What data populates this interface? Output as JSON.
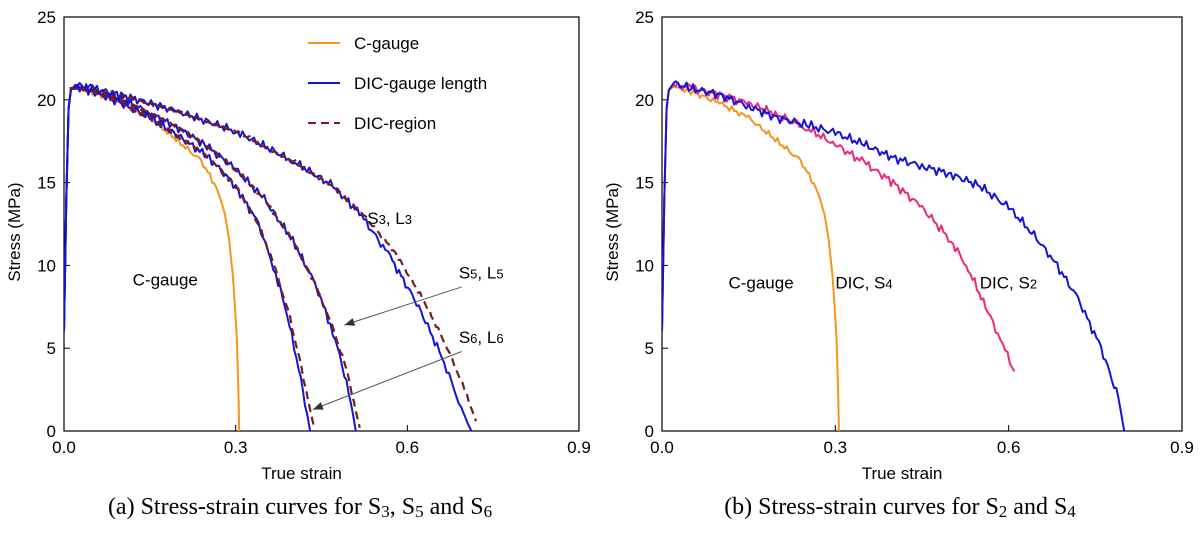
{
  "colors": {
    "c_gauge": "#f7941d",
    "dic_gauge": "#1414d8",
    "dic_region": "#7a1c1c",
    "dic_s4": "#ec2a7c",
    "axis": "#000000"
  },
  "chart_data": [
    {
      "id": "a",
      "type": "line",
      "caption": {
        "prefix": "(a) Stress-strain curves for S",
        "s1": "3",
        "mid1": ", S",
        "s2": "5",
        "mid2": " and S",
        "s3": "6"
      },
      "xlabel": "True strain",
      "ylabel": "Stress (MPa)",
      "xlim": [
        0,
        0.9
      ],
      "ylim": [
        0,
        25
      ],
      "xticks": [
        "0.0",
        "0.3",
        "0.6",
        "0.9"
      ],
      "yticks": [
        "0",
        "5",
        "10",
        "15",
        "20",
        "25"
      ],
      "legend": {
        "position": "top-right",
        "entries": [
          {
            "label": "C-gauge",
            "color": "#f7941d",
            "dash": false
          },
          {
            "label": "DIC-gauge length",
            "color": "#1414d8",
            "dash": false
          },
          {
            "label": "DIC-region",
            "color": "#7a1c1c",
            "dash": true
          }
        ]
      },
      "annotations": [
        {
          "base": "C-gauge",
          "sub": "",
          "tail": "",
          "sub2": "",
          "x": 0.12,
          "y": 8.8
        },
        {
          "base": "S",
          "sub": "3",
          "tail": ", L",
          "sub2": "3",
          "x": 0.53,
          "y": 12.5
        },
        {
          "base": "S",
          "sub": "5",
          "tail": ", L",
          "sub2": "5",
          "x": 0.69,
          "y": 9.2
        },
        {
          "base": "S",
          "sub": "6",
          "tail": ", L",
          "sub2": "6",
          "x": 0.69,
          "y": 5.3
        }
      ],
      "arrows": [
        {
          "from": [
            0.695,
            8.7
          ],
          "to": [
            0.49,
            6.4
          ]
        },
        {
          "from": [
            0.695,
            4.8
          ],
          "to": [
            0.435,
            1.3
          ]
        }
      ],
      "series": [
        {
          "name": "C-gauge",
          "color": "#f7941d",
          "dash": false,
          "wiggle": 0.2,
          "x": [
            0,
            0.004,
            0.008,
            0.012,
            0.02,
            0.05,
            0.1,
            0.15,
            0.2,
            0.24,
            0.27,
            0.285,
            0.295,
            0.302,
            0.305,
            0.306,
            0.306
          ],
          "y": [
            6,
            14,
            19.5,
            20.6,
            20.8,
            20.5,
            19.8,
            18.9,
            17.5,
            16.3,
            14.5,
            12.5,
            9.5,
            5.5,
            2,
            0.5,
            0
          ]
        },
        {
          "name": "DIC-gauge length S3",
          "color": "#1414d8",
          "dash": false,
          "wiggle": 0.28,
          "x": [
            0,
            0.004,
            0.008,
            0.012,
            0.02,
            0.05,
            0.1,
            0.2,
            0.3,
            0.4,
            0.47,
            0.52,
            0.57,
            0.62,
            0.66,
            0.69,
            0.705,
            0.712
          ],
          "y": [
            6,
            14,
            19.5,
            20.6,
            20.9,
            20.7,
            20.3,
            19.3,
            18.1,
            16.3,
            14.8,
            13,
            10.5,
            7.5,
            4.5,
            1.8,
            0.5,
            0
          ]
        },
        {
          "name": "DIC-region S3",
          "color": "#7a1c1c",
          "dash": true,
          "wiggle": 0.15,
          "x": [
            0.01,
            0.05,
            0.1,
            0.2,
            0.3,
            0.4,
            0.47,
            0.53,
            0.58,
            0.63,
            0.67,
            0.7,
            0.72
          ],
          "y": [
            20.7,
            20.7,
            20.3,
            19.3,
            18.1,
            16.3,
            14.8,
            12.8,
            10.7,
            7.8,
            5,
            2.5,
            0.6
          ]
        },
        {
          "name": "DIC-gauge length S5",
          "color": "#1414d8",
          "dash": false,
          "wiggle": 0.28,
          "x": [
            0,
            0.004,
            0.008,
            0.012,
            0.02,
            0.05,
            0.1,
            0.15,
            0.2,
            0.25,
            0.3,
            0.35,
            0.4,
            0.44,
            0.47,
            0.49,
            0.505,
            0.51
          ],
          "y": [
            6,
            14,
            19.5,
            20.6,
            20.8,
            20.6,
            20,
            19.2,
            18.3,
            17.2,
            15.8,
            14,
            11.5,
            8.8,
            6,
            3.5,
            1,
            0
          ]
        },
        {
          "name": "DIC-region S5",
          "color": "#7a1c1c",
          "dash": true,
          "wiggle": 0.15,
          "x": [
            0.01,
            0.05,
            0.1,
            0.15,
            0.2,
            0.25,
            0.3,
            0.35,
            0.4,
            0.44,
            0.47,
            0.495,
            0.51,
            0.517
          ],
          "y": [
            20.7,
            20.6,
            20,
            19.2,
            18.3,
            17.2,
            15.8,
            14,
            11.5,
            8.8,
            6.2,
            3.6,
            1.2,
            0.2
          ]
        },
        {
          "name": "DIC-gauge length S6",
          "color": "#1414d8",
          "dash": false,
          "wiggle": 0.28,
          "x": [
            0,
            0.004,
            0.008,
            0.012,
            0.02,
            0.05,
            0.1,
            0.15,
            0.2,
            0.25,
            0.3,
            0.34,
            0.37,
            0.39,
            0.41,
            0.425,
            0.43
          ],
          "y": [
            6,
            14,
            19.5,
            20.6,
            20.8,
            20.5,
            19.8,
            18.9,
            17.8,
            16.6,
            14.8,
            12.5,
            9.5,
            7,
            3.8,
            1,
            0
          ]
        },
        {
          "name": "DIC-region S6",
          "color": "#7a1c1c",
          "dash": true,
          "wiggle": 0.15,
          "x": [
            0.01,
            0.05,
            0.1,
            0.15,
            0.2,
            0.25,
            0.3,
            0.34,
            0.37,
            0.395,
            0.415,
            0.43,
            0.437
          ],
          "y": [
            20.7,
            20.5,
            19.8,
            18.9,
            17.8,
            16.6,
            14.8,
            12.5,
            9.7,
            6.8,
            3.8,
            1.3,
            0.2
          ]
        }
      ]
    },
    {
      "id": "b",
      "type": "line",
      "caption": {
        "prefix": "(b) Stress-strain curves for S",
        "s1": "2",
        "mid1": " and S",
        "s2": "4",
        "mid2": "",
        "s3": ""
      },
      "xlabel": "True strain",
      "ylabel": "Stress (MPa)",
      "xlim": [
        0,
        0.9
      ],
      "ylim": [
        0,
        25
      ],
      "xticks": [
        "0.0",
        "0.3",
        "0.6",
        "0.9"
      ],
      "yticks": [
        "0",
        "5",
        "10",
        "15",
        "20",
        "25"
      ],
      "annotations": [
        {
          "base": "C-gauge",
          "sub": "",
          "tail": "",
          "sub2": "",
          "x": 0.115,
          "y": 8.6
        },
        {
          "base": "DIC, S",
          "sub": "4",
          "tail": "",
          "sub2": "",
          "x": 0.3,
          "y": 8.6
        },
        {
          "base": "DIC, S",
          "sub": "2",
          "tail": "",
          "sub2": "",
          "x": 0.55,
          "y": 8.6
        }
      ],
      "arrows": [],
      "series": [
        {
          "name": "C-gauge",
          "color": "#f7941d",
          "dash": false,
          "wiggle": 0.2,
          "x": [
            0,
            0.004,
            0.008,
            0.012,
            0.02,
            0.05,
            0.1,
            0.15,
            0.2,
            0.24,
            0.27,
            0.285,
            0.295,
            0.302,
            0.305,
            0.306,
            0.306
          ],
          "y": [
            6,
            14,
            19.5,
            20.6,
            20.8,
            20.5,
            19.8,
            18.9,
            17.5,
            16.3,
            14.5,
            12.5,
            9.5,
            5.5,
            2,
            0.5,
            0
          ]
        },
        {
          "name": "DIC, S4",
          "color": "#ec2a7c",
          "dash": false,
          "wiggle": 0.3,
          "x": [
            0,
            0.004,
            0.008,
            0.012,
            0.02,
            0.05,
            0.1,
            0.15,
            0.2,
            0.25,
            0.3,
            0.35,
            0.4,
            0.45,
            0.5,
            0.53,
            0.56,
            0.59,
            0.61
          ],
          "y": [
            6,
            14,
            19.5,
            20.6,
            20.9,
            20.7,
            20.3,
            19.8,
            19.1,
            18.3,
            17.3,
            16.2,
            15,
            13.5,
            11.5,
            9.8,
            7.5,
            5.2,
            3.6
          ]
        },
        {
          "name": "DIC, S2",
          "color": "#1414d8",
          "dash": false,
          "wiggle": 0.3,
          "x": [
            0,
            0.004,
            0.008,
            0.012,
            0.02,
            0.05,
            0.1,
            0.15,
            0.2,
            0.25,
            0.3,
            0.35,
            0.4,
            0.45,
            0.5,
            0.55,
            0.6,
            0.64,
            0.68,
            0.72,
            0.76,
            0.79,
            0.8
          ],
          "y": [
            6,
            14,
            19.5,
            20.6,
            21,
            20.7,
            20.3,
            19.6,
            18.9,
            18.5,
            18,
            17.3,
            16.5,
            16,
            15.5,
            14.8,
            13.5,
            12,
            10.2,
            8,
            5,
            2,
            0
          ]
        }
      ]
    }
  ]
}
